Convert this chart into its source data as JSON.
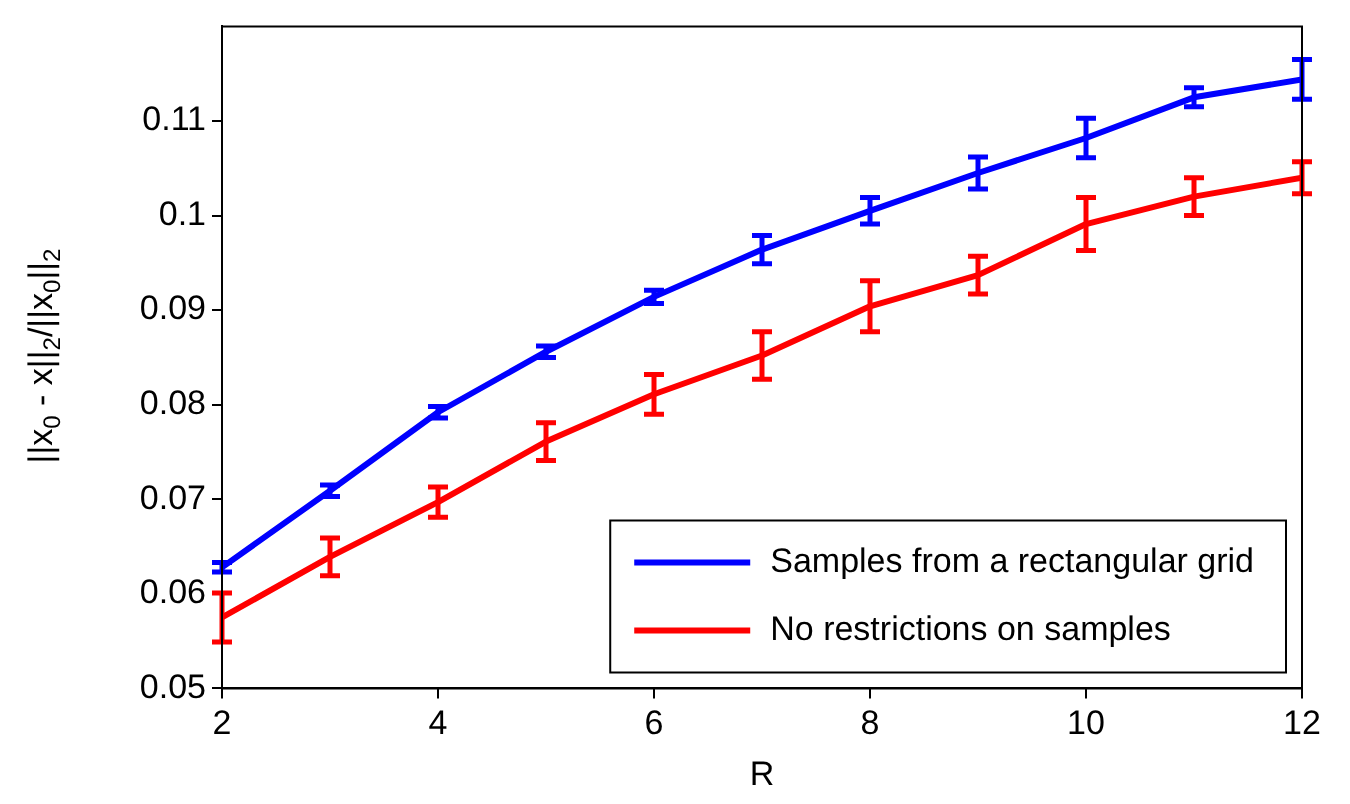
{
  "chart_data": {
    "type": "line",
    "xlabel": "R",
    "ylabel": "||x$_{0}$ - x||$_{2}$/||x$_{0}$||$_{2}$",
    "x": [
      2,
      3,
      4,
      5,
      6,
      7,
      8,
      9,
      10,
      11,
      12
    ],
    "xlim": [
      2,
      12
    ],
    "xticks": [
      2,
      4,
      6,
      8,
      10,
      12
    ],
    "ylim": [
      0.05,
      0.12
    ],
    "yticks": [
      0.05,
      0.06,
      0.07,
      0.08,
      0.09,
      0.1,
      0.11
    ],
    "grid": false,
    "legend": "bottom right",
    "marker": "none",
    "line_style": "solid",
    "series": [
      {
        "name": "Samples from a rectangular grid",
        "color": "#0000ff",
        "values": [
          0.0628,
          0.0709,
          0.0792,
          0.0856,
          0.0914,
          0.0964,
          0.1005,
          0.1045,
          0.1082,
          0.1125,
          0.1144
        ],
        "errors": [
          0.0005,
          0.0006,
          0.0006,
          0.0006,
          0.0007,
          0.0015,
          0.0014,
          0.0017,
          0.0021,
          0.001,
          0.0021
        ]
      },
      {
        "name": "No restrictions on samples",
        "color": "#ff0000",
        "values": [
          0.0575,
          0.0639,
          0.0697,
          0.0761,
          0.0811,
          0.0852,
          0.0904,
          0.0937,
          0.0991,
          0.102,
          0.104
        ],
        "errors": [
          0.0026,
          0.002,
          0.0016,
          0.002,
          0.0021,
          0.0025,
          0.0027,
          0.002,
          0.0028,
          0.002,
          0.0017
        ]
      }
    ]
  }
}
